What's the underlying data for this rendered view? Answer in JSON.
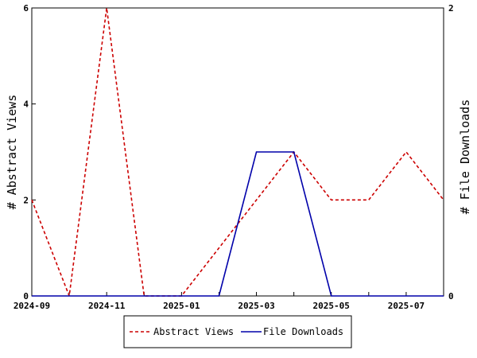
{
  "chart_data": {
    "type": "line",
    "x": [
      "2024-09",
      "2024-10",
      "2024-11",
      "2024-12",
      "2025-01",
      "2025-02",
      "2025-03",
      "2025-04",
      "2025-05",
      "2025-06",
      "2025-07",
      "2025-08"
    ],
    "x_tick_labels": [
      "2024-09",
      "2024-11",
      "2025-01",
      "2025-03",
      "2025-05",
      "2025-07"
    ],
    "series": [
      {
        "name": "Abstract Views",
        "axis": "left",
        "color": "#cc0000",
        "style": "dashed",
        "values": [
          2,
          0,
          6,
          0,
          0,
          1,
          2,
          3,
          2,
          2,
          3,
          2
        ]
      },
      {
        "name": "File Downloads",
        "axis": "right",
        "color": "#0000aa",
        "style": "solid",
        "values": [
          0,
          0,
          0,
          0,
          0,
          0,
          1,
          1,
          0,
          0,
          0,
          0
        ]
      }
    ],
    "ylabel": "# Abstract Views",
    "ylabel_right": "# File Downloads",
    "ylim": [
      0,
      6
    ],
    "ylim_right": [
      0,
      2
    ],
    "y_ticks": [
      "0",
      "2",
      "4",
      "6"
    ],
    "y_ticks_right": [
      "0",
      "2"
    ],
    "grid": false,
    "legend_position": "bottom"
  }
}
